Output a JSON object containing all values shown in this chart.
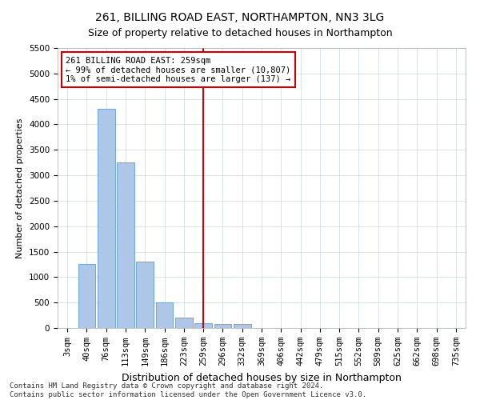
{
  "title": "261, BILLING ROAD EAST, NORTHAMPTON, NN3 3LG",
  "subtitle": "Size of property relative to detached houses in Northampton",
  "xlabel": "Distribution of detached houses by size in Northampton",
  "ylabel": "Number of detached properties",
  "categories": [
    "3sqm",
    "40sqm",
    "76sqm",
    "113sqm",
    "149sqm",
    "186sqm",
    "223sqm",
    "259sqm",
    "296sqm",
    "332sqm",
    "369sqm",
    "406sqm",
    "442sqm",
    "479sqm",
    "515sqm",
    "552sqm",
    "589sqm",
    "625sqm",
    "662sqm",
    "698sqm",
    "735sqm"
  ],
  "bar_heights": [
    0,
    1250,
    4300,
    3250,
    1300,
    500,
    200,
    100,
    75,
    75,
    0,
    0,
    0,
    0,
    0,
    0,
    0,
    0,
    0,
    0,
    0
  ],
  "bar_color": "#aec6e8",
  "bar_edge_color": "#5a9fd4",
  "vline_x_index": 7,
  "vline_color": "#cc0000",
  "ylim": [
    0,
    5500
  ],
  "yticks": [
    0,
    500,
    1000,
    1500,
    2000,
    2500,
    3000,
    3500,
    4000,
    4500,
    5000,
    5500
  ],
  "annotation_line1": "261 BILLING ROAD EAST: 259sqm",
  "annotation_line2": "← 99% of detached houses are smaller (10,807)",
  "annotation_line3": "1% of semi-detached houses are larger (137) →",
  "annotation_box_color": "#ffffff",
  "annotation_box_edge": "#cc0000",
  "footer": "Contains HM Land Registry data © Crown copyright and database right 2024.\nContains public sector information licensed under the Open Government Licence v3.0.",
  "title_fontsize": 10,
  "subtitle_fontsize": 9,
  "xlabel_fontsize": 9,
  "ylabel_fontsize": 8,
  "tick_fontsize": 7.5,
  "annotation_fontsize": 7.5,
  "footer_fontsize": 6.5
}
